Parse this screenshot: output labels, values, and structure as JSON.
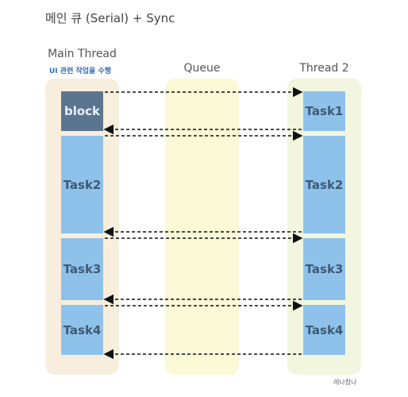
{
  "title": "메인 큐 (Serial) + Sync",
  "columns": {
    "main": "Main Thread",
    "queue": "Queue",
    "thread2": "Thread 2"
  },
  "main_note": "UI 관련 작업을 수행",
  "main_blocks": [
    "block",
    "Task2",
    "Task3",
    "Task4"
  ],
  "thread2_blocks": [
    "Task1",
    "Task2",
    "Task3",
    "Task4"
  ],
  "watermark": "레나참나",
  "colors": {
    "main_lane": "#f8eedd",
    "queue_lane": "#fbf9d6",
    "thread2_lane": "#f2f6df",
    "task_block": "#8fc2ea",
    "blocked_block": "#5b7590",
    "note_text": "#2f6fb8"
  }
}
